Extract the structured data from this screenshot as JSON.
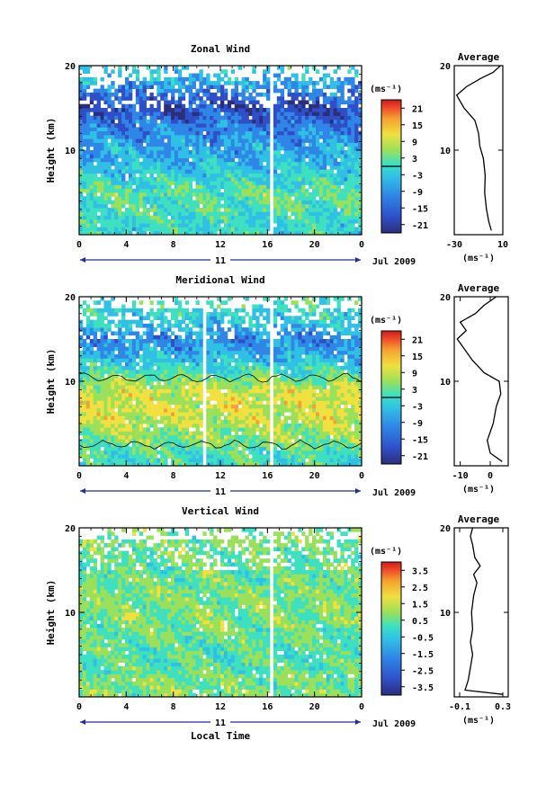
{
  "chart_data": [
    {
      "type": "heatmap",
      "title": "Zonal Wind",
      "ylabel": "Height (km)",
      "ylim": [
        0,
        20
      ],
      "yticks": [
        "10",
        "20"
      ],
      "xlim": [
        0,
        24
      ],
      "xticks": [
        "0",
        "4",
        "8",
        "12",
        "16",
        "20",
        "0"
      ],
      "date_row": {
        "day": "11",
        "month": "Jul 2009"
      },
      "gaps_hours": [
        16.4
      ],
      "colorbar": {
        "unit": "(ms⁻¹)",
        "ticks": [
          "21",
          "15",
          "9",
          "3",
          "-3",
          "-9",
          "-15",
          "-21"
        ],
        "range": [
          -24,
          24
        ],
        "contour_level": 0
      },
      "profile_rows": [
        {
          "height_km": 1,
          "value": -4
        },
        {
          "height_km": 3,
          "value": -2
        },
        {
          "height_km": 5,
          "value": -1
        },
        {
          "height_km": 7,
          "value": -5
        },
        {
          "height_km": 9,
          "value": -8
        },
        {
          "height_km": 11,
          "value": -10
        },
        {
          "height_km": 13,
          "value": -13
        },
        {
          "height_km": 15,
          "value": -18
        },
        {
          "height_km": 17,
          "value": -12
        },
        {
          "height_km": 19,
          "value": -6
        }
      ],
      "average": {
        "title": "Average",
        "xlabel": "(ms⁻¹)",
        "xticks": [
          "-30",
          "10"
        ],
        "xlim": [
          -30,
          10
        ],
        "ylim": [
          0,
          20
        ],
        "yticks": [
          "10",
          "20"
        ],
        "profile": [
          {
            "h": 0.5,
            "v": 0.5
          },
          {
            "h": 1.5,
            "v": -1.5
          },
          {
            "h": 3.0,
            "v": -3.5
          },
          {
            "h": 5.0,
            "v": -5
          },
          {
            "h": 7.0,
            "v": -4.5
          },
          {
            "h": 9.0,
            "v": -6
          },
          {
            "h": 10.5,
            "v": -9
          },
          {
            "h": 12.0,
            "v": -10
          },
          {
            "h": 13.5,
            "v": -13
          },
          {
            "h": 15.0,
            "v": -22
          },
          {
            "h": 16.5,
            "v": -28
          },
          {
            "h": 17.5,
            "v": -20
          },
          {
            "h": 18.5,
            "v": -8
          },
          {
            "h": 19.2,
            "v": 2
          },
          {
            "h": 20.0,
            "v": 8
          }
        ]
      }
    },
    {
      "type": "heatmap",
      "title": "Meridional Wind",
      "ylabel": "Height (km)",
      "ylim": [
        0,
        20
      ],
      "yticks": [
        "10",
        "20"
      ],
      "xlim": [
        0,
        24
      ],
      "xticks": [
        "0",
        "4",
        "8",
        "12",
        "16",
        "20",
        "0"
      ],
      "date_row": {
        "day": "11",
        "month": "Jul 2009"
      },
      "gaps_hours": [
        10.6,
        16.4
      ],
      "colorbar": {
        "unit": "(ms⁻¹)",
        "ticks": [
          "21",
          "15",
          "9",
          "3",
          "-3",
          "-9",
          "-15",
          "-21"
        ],
        "range": [
          -24,
          24
        ],
        "contour_level": 0
      },
      "profile_rows": [
        {
          "height_km": 1,
          "value": -3
        },
        {
          "height_km": 3,
          "value": 1
        },
        {
          "height_km": 5,
          "value": 4
        },
        {
          "height_km": 7,
          "value": 6
        },
        {
          "height_km": 9,
          "value": 5
        },
        {
          "height_km": 11,
          "value": -2
        },
        {
          "height_km": 13,
          "value": -8
        },
        {
          "height_km": 15,
          "value": -12
        },
        {
          "height_km": 17,
          "value": -6
        },
        {
          "height_km": 19,
          "value": -3
        }
      ],
      "average": {
        "title": "Average",
        "xlabel": "(ms⁻¹)",
        "xticks": [
          "-10",
          "0"
        ],
        "xlim": [
          -12,
          6
        ],
        "ylim": [
          0,
          20
        ],
        "yticks": [
          "10",
          "20"
        ],
        "profile": [
          {
            "h": 0.5,
            "v": 4
          },
          {
            "h": 1.5,
            "v": 0
          },
          {
            "h": 3.0,
            "v": -1
          },
          {
            "h": 5.0,
            "v": 1
          },
          {
            "h": 7.0,
            "v": 2
          },
          {
            "h": 8.5,
            "v": 3.5
          },
          {
            "h": 10.0,
            "v": 3
          },
          {
            "h": 11.0,
            "v": -2
          },
          {
            "h": 12.5,
            "v": -6
          },
          {
            "h": 14.0,
            "v": -9
          },
          {
            "h": 15.0,
            "v": -11
          },
          {
            "h": 16.0,
            "v": -8
          },
          {
            "h": 17.0,
            "v": -10
          },
          {
            "h": 18.0,
            "v": -5
          },
          {
            "h": 19.0,
            "v": -2
          },
          {
            "h": 20.0,
            "v": 2
          }
        ]
      }
    },
    {
      "type": "heatmap",
      "title": "Vertical Wind",
      "ylabel": "Height (km)",
      "xlabel": "Local Time",
      "ylim": [
        0,
        20
      ],
      "yticks": [
        "10",
        "20"
      ],
      "xlim": [
        0,
        24
      ],
      "xticks": [
        "0",
        "4",
        "8",
        "12",
        "16",
        "20",
        "0"
      ],
      "date_row": {
        "day": "11",
        "month": "Jul 2009"
      },
      "gaps_hours": [
        16.4
      ],
      "colorbar": {
        "unit": "(ms⁻¹)",
        "ticks": [
          "3.5",
          "2.5",
          "1.5",
          "0.5",
          "-0.5",
          "-1.5",
          "-2.5",
          "-3.5"
        ],
        "range": [
          -4,
          4
        ],
        "contour_level": null
      },
      "profile_rows": [
        {
          "height_km": 1,
          "value": 0.1
        },
        {
          "height_km": 3,
          "value": -0.1
        },
        {
          "height_km": 5,
          "value": -0.2
        },
        {
          "height_km": 7,
          "value": -0.1
        },
        {
          "height_km": 9,
          "value": 0.1
        },
        {
          "height_km": 11,
          "value": 0.2
        },
        {
          "height_km": 13,
          "value": 0.1
        },
        {
          "height_km": 15,
          "value": -0.1
        },
        {
          "height_km": 17,
          "value": 0.0
        },
        {
          "height_km": 19,
          "value": 0.1
        }
      ],
      "average": {
        "title": "Average",
        "xlabel": "(ms⁻¹)",
        "xticks": [
          "-0.1",
          "0.3"
        ],
        "xlim": [
          -0.15,
          0.35
        ],
        "ylim": [
          0,
          20
        ],
        "yticks": [
          "10",
          "20"
        ],
        "profile": [
          {
            "h": 0.3,
            "v": 0.3
          },
          {
            "h": 0.8,
            "v": -0.05
          },
          {
            "h": 2.0,
            "v": -0.02
          },
          {
            "h": 3.5,
            "v": 0.0
          },
          {
            "h": 5.0,
            "v": 0.02
          },
          {
            "h": 6.5,
            "v": 0.0
          },
          {
            "h": 8.0,
            "v": 0.02
          },
          {
            "h": 10.0,
            "v": 0.01
          },
          {
            "h": 12.0,
            "v": 0.03
          },
          {
            "h": 13.5,
            "v": 0.06
          },
          {
            "h": 14.5,
            "v": 0.03
          },
          {
            "h": 15.5,
            "v": 0.09
          },
          {
            "h": 16.5,
            "v": 0.04
          },
          {
            "h": 18.0,
            "v": 0.02
          },
          {
            "h": 19.0,
            "v": 0.0
          },
          {
            "h": 20.0,
            "v": 0.02
          }
        ]
      }
    }
  ],
  "colors": {
    "scale": [
      "#2b2f7a",
      "#2f4fc8",
      "#2f86e6",
      "#30c0e6",
      "#3ee0c0",
      "#9ae05a",
      "#f0e040",
      "#f5a030",
      "#ee4a28",
      "#d01a1a"
    ],
    "contour": "#000000",
    "frame": "#000000",
    "date_arrow": "#1f2fa0"
  }
}
